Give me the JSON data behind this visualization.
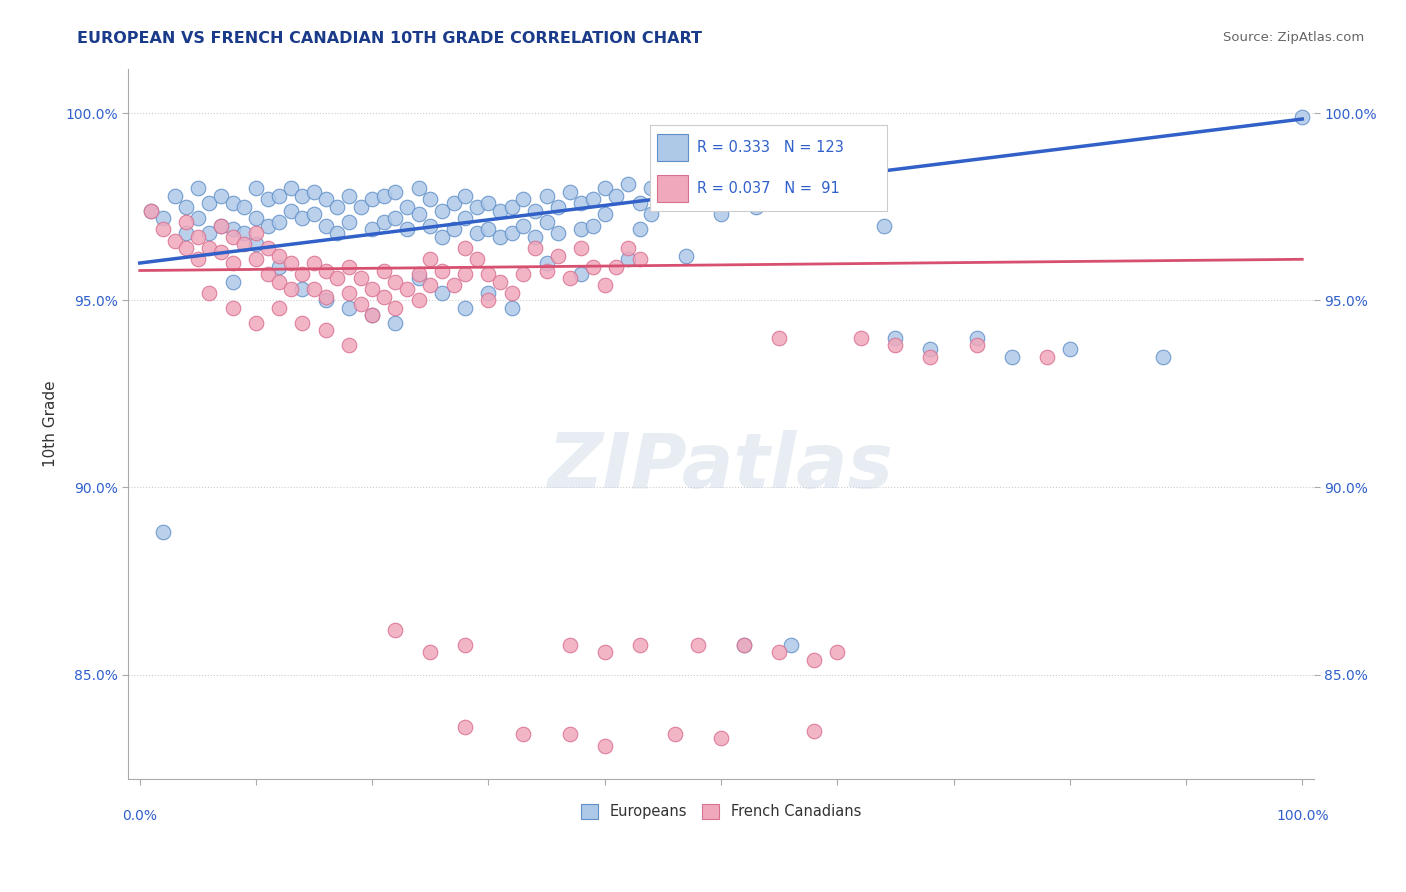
{
  "title": "EUROPEAN VS FRENCH CANADIAN 10TH GRADE CORRELATION CHART",
  "source": "Source: ZipAtlas.com",
  "ylabel": "10th Grade",
  "y_tick_labels": [
    "85.0%",
    "90.0%",
    "95.0%",
    "100.0%"
  ],
  "y_tick_values": [
    0.85,
    0.9,
    0.95,
    1.0
  ],
  "x_lim": [
    -0.01,
    1.01
  ],
  "y_lim": [
    0.822,
    1.012
  ],
  "legend_entries": [
    {
      "label": "Europeans",
      "color": "#aec8e8"
    },
    {
      "label": "French Canadians",
      "color": "#f0a8bc"
    }
  ],
  "blue_R": 0.333,
  "blue_N": 123,
  "pink_R": 0.037,
  "pink_N": 91,
  "blue_line_color": "#3060c8",
  "pink_line_color": "#d85070",
  "dot_blue_color": "#aec8e8",
  "dot_pink_color": "#f0a8bc",
  "dot_edge_blue": "#6090c8",
  "dot_edge_pink": "#d87090",
  "title_color": "#1a3a8a",
  "axis_label_color": "#3060cc",
  "tick_color": "#3060cc",
  "source_color": "#666666",
  "background_color": "#ffffff",
  "blue_line_start_y": 0.96,
  "blue_line_end_y": 0.9985,
  "pink_line_start_y": 0.958,
  "pink_line_end_y": 0.961,
  "blue_dots": [
    [
      0.01,
      0.974
    ],
    [
      0.02,
      0.972
    ],
    [
      0.03,
      0.978
    ],
    [
      0.04,
      0.975
    ],
    [
      0.04,
      0.968
    ],
    [
      0.05,
      0.98
    ],
    [
      0.05,
      0.972
    ],
    [
      0.06,
      0.976
    ],
    [
      0.06,
      0.968
    ],
    [
      0.07,
      0.978
    ],
    [
      0.07,
      0.97
    ],
    [
      0.08,
      0.976
    ],
    [
      0.08,
      0.969
    ],
    [
      0.09,
      0.975
    ],
    [
      0.09,
      0.968
    ],
    [
      0.1,
      0.98
    ],
    [
      0.1,
      0.972
    ],
    [
      0.1,
      0.965
    ],
    [
      0.11,
      0.977
    ],
    [
      0.11,
      0.97
    ],
    [
      0.12,
      0.978
    ],
    [
      0.12,
      0.971
    ],
    [
      0.13,
      0.98
    ],
    [
      0.13,
      0.974
    ],
    [
      0.14,
      0.978
    ],
    [
      0.14,
      0.972
    ],
    [
      0.15,
      0.979
    ],
    [
      0.15,
      0.973
    ],
    [
      0.16,
      0.977
    ],
    [
      0.16,
      0.97
    ],
    [
      0.17,
      0.975
    ],
    [
      0.17,
      0.968
    ],
    [
      0.18,
      0.978
    ],
    [
      0.18,
      0.971
    ],
    [
      0.19,
      0.975
    ],
    [
      0.2,
      0.977
    ],
    [
      0.2,
      0.969
    ],
    [
      0.21,
      0.978
    ],
    [
      0.21,
      0.971
    ],
    [
      0.22,
      0.979
    ],
    [
      0.22,
      0.972
    ],
    [
      0.23,
      0.975
    ],
    [
      0.23,
      0.969
    ],
    [
      0.24,
      0.98
    ],
    [
      0.24,
      0.973
    ],
    [
      0.25,
      0.977
    ],
    [
      0.25,
      0.97
    ],
    [
      0.26,
      0.974
    ],
    [
      0.26,
      0.967
    ],
    [
      0.27,
      0.976
    ],
    [
      0.27,
      0.969
    ],
    [
      0.28,
      0.978
    ],
    [
      0.28,
      0.972
    ],
    [
      0.29,
      0.975
    ],
    [
      0.29,
      0.968
    ],
    [
      0.3,
      0.976
    ],
    [
      0.3,
      0.969
    ],
    [
      0.31,
      0.974
    ],
    [
      0.31,
      0.967
    ],
    [
      0.32,
      0.975
    ],
    [
      0.32,
      0.968
    ],
    [
      0.33,
      0.977
    ],
    [
      0.33,
      0.97
    ],
    [
      0.34,
      0.974
    ],
    [
      0.34,
      0.967
    ],
    [
      0.35,
      0.978
    ],
    [
      0.35,
      0.971
    ],
    [
      0.36,
      0.975
    ],
    [
      0.36,
      0.968
    ],
    [
      0.37,
      0.979
    ],
    [
      0.38,
      0.976
    ],
    [
      0.38,
      0.969
    ],
    [
      0.39,
      0.977
    ],
    [
      0.39,
      0.97
    ],
    [
      0.4,
      0.98
    ],
    [
      0.4,
      0.973
    ],
    [
      0.41,
      0.978
    ],
    [
      0.42,
      0.981
    ],
    [
      0.43,
      0.976
    ],
    [
      0.43,
      0.969
    ],
    [
      0.44,
      0.98
    ],
    [
      0.44,
      0.973
    ],
    [
      0.45,
      0.982
    ],
    [
      0.46,
      0.984
    ],
    [
      0.46,
      0.977
    ],
    [
      0.47,
      0.981
    ],
    [
      0.48,
      0.984
    ],
    [
      0.48,
      0.978
    ],
    [
      0.49,
      0.983
    ],
    [
      0.5,
      0.98
    ],
    [
      0.5,
      0.973
    ],
    [
      0.51,
      0.984
    ],
    [
      0.52,
      0.981
    ],
    [
      0.53,
      0.975
    ],
    [
      0.54,
      0.977
    ],
    [
      0.55,
      0.983
    ],
    [
      0.56,
      0.978
    ],
    [
      0.57,
      0.981
    ],
    [
      0.58,
      0.984
    ],
    [
      0.59,
      0.977
    ],
    [
      0.6,
      0.985
    ],
    [
      0.61,
      0.98
    ],
    [
      0.62,
      0.977
    ],
    [
      0.64,
      0.97
    ],
    [
      0.02,
      0.888
    ],
    [
      0.08,
      0.955
    ],
    [
      0.12,
      0.959
    ],
    [
      0.14,
      0.953
    ],
    [
      0.16,
      0.95
    ],
    [
      0.18,
      0.948
    ],
    [
      0.2,
      0.946
    ],
    [
      0.22,
      0.944
    ],
    [
      0.24,
      0.956
    ],
    [
      0.26,
      0.952
    ],
    [
      0.28,
      0.948
    ],
    [
      0.3,
      0.952
    ],
    [
      0.32,
      0.948
    ],
    [
      0.35,
      0.96
    ],
    [
      0.38,
      0.957
    ],
    [
      0.42,
      0.961
    ],
    [
      0.47,
      0.962
    ],
    [
      0.52,
      0.858
    ],
    [
      0.56,
      0.858
    ],
    [
      0.65,
      0.94
    ],
    [
      0.68,
      0.937
    ],
    [
      0.72,
      0.94
    ],
    [
      0.75,
      0.935
    ],
    [
      0.8,
      0.937
    ],
    [
      0.88,
      0.935
    ],
    [
      1.0,
      0.999
    ]
  ],
  "pink_dots": [
    [
      0.01,
      0.974
    ],
    [
      0.02,
      0.969
    ],
    [
      0.03,
      0.966
    ],
    [
      0.04,
      0.971
    ],
    [
      0.04,
      0.964
    ],
    [
      0.05,
      0.967
    ],
    [
      0.05,
      0.961
    ],
    [
      0.06,
      0.964
    ],
    [
      0.07,
      0.97
    ],
    [
      0.07,
      0.963
    ],
    [
      0.08,
      0.967
    ],
    [
      0.08,
      0.96
    ],
    [
      0.09,
      0.965
    ],
    [
      0.1,
      0.968
    ],
    [
      0.1,
      0.961
    ],
    [
      0.11,
      0.964
    ],
    [
      0.11,
      0.957
    ],
    [
      0.12,
      0.962
    ],
    [
      0.12,
      0.955
    ],
    [
      0.13,
      0.96
    ],
    [
      0.13,
      0.953
    ],
    [
      0.14,
      0.957
    ],
    [
      0.15,
      0.96
    ],
    [
      0.15,
      0.953
    ],
    [
      0.16,
      0.958
    ],
    [
      0.16,
      0.951
    ],
    [
      0.17,
      0.956
    ],
    [
      0.18,
      0.959
    ],
    [
      0.18,
      0.952
    ],
    [
      0.19,
      0.956
    ],
    [
      0.19,
      0.949
    ],
    [
      0.2,
      0.953
    ],
    [
      0.2,
      0.946
    ],
    [
      0.21,
      0.958
    ],
    [
      0.21,
      0.951
    ],
    [
      0.22,
      0.955
    ],
    [
      0.22,
      0.948
    ],
    [
      0.23,
      0.953
    ],
    [
      0.24,
      0.95
    ],
    [
      0.24,
      0.957
    ],
    [
      0.25,
      0.954
    ],
    [
      0.25,
      0.961
    ],
    [
      0.26,
      0.958
    ],
    [
      0.27,
      0.954
    ],
    [
      0.28,
      0.957
    ],
    [
      0.28,
      0.964
    ],
    [
      0.29,
      0.961
    ],
    [
      0.3,
      0.957
    ],
    [
      0.3,
      0.95
    ],
    [
      0.31,
      0.955
    ],
    [
      0.32,
      0.952
    ],
    [
      0.33,
      0.957
    ],
    [
      0.34,
      0.964
    ],
    [
      0.35,
      0.958
    ],
    [
      0.36,
      0.962
    ],
    [
      0.37,
      0.956
    ],
    [
      0.38,
      0.964
    ],
    [
      0.39,
      0.959
    ],
    [
      0.4,
      0.954
    ],
    [
      0.41,
      0.959
    ],
    [
      0.42,
      0.964
    ],
    [
      0.43,
      0.961
    ],
    [
      0.06,
      0.952
    ],
    [
      0.08,
      0.948
    ],
    [
      0.1,
      0.944
    ],
    [
      0.12,
      0.948
    ],
    [
      0.14,
      0.944
    ],
    [
      0.16,
      0.942
    ],
    [
      0.18,
      0.938
    ],
    [
      0.22,
      0.862
    ],
    [
      0.25,
      0.856
    ],
    [
      0.28,
      0.858
    ],
    [
      0.37,
      0.858
    ],
    [
      0.4,
      0.856
    ],
    [
      0.43,
      0.858
    ],
    [
      0.37,
      0.834
    ],
    [
      0.4,
      0.831
    ],
    [
      0.46,
      0.834
    ],
    [
      0.48,
      0.858
    ],
    [
      0.52,
      0.858
    ],
    [
      0.55,
      0.856
    ],
    [
      0.58,
      0.854
    ],
    [
      0.6,
      0.856
    ],
    [
      0.28,
      0.836
    ],
    [
      0.33,
      0.834
    ],
    [
      0.5,
      0.833
    ],
    [
      0.58,
      0.835
    ],
    [
      0.55,
      0.94
    ],
    [
      0.62,
      0.94
    ],
    [
      0.65,
      0.938
    ],
    [
      0.68,
      0.935
    ],
    [
      0.72,
      0.938
    ],
    [
      0.78,
      0.935
    ]
  ]
}
